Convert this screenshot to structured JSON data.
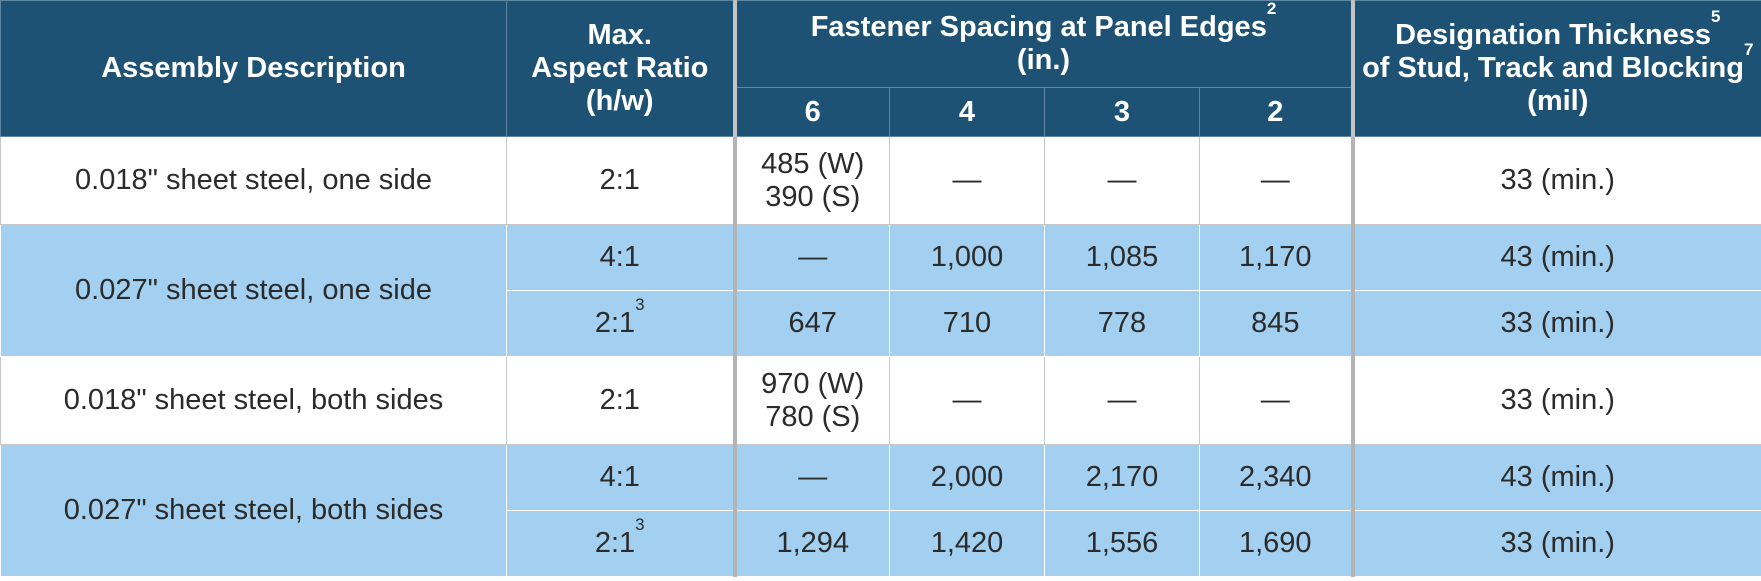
{
  "header": {
    "assembly_description": "Assembly Description",
    "max_aspect_ratio": [
      "Max.",
      "Aspect Ratio",
      "(h/w)"
    ],
    "fastener_spacing": {
      "line1": "Fastener Spacing at Panel Edges",
      "sup": "2",
      "line2": "(in.)"
    },
    "spacing_columns": [
      "6",
      "4",
      "3",
      "2"
    ],
    "designation": {
      "line1": "Designation Thickness",
      "sup1": "5",
      "line2": "of Stud, Track and Blocking",
      "sup2": "7",
      "line3": "(mil)"
    }
  },
  "rows": [
    {
      "description": "0.018\" sheet steel, one side",
      "ratio": "2:1",
      "ratio_sup": "",
      "s6": [
        "485 (W)",
        "390 (S)"
      ],
      "s4": "—",
      "s3": "—",
      "s2": "—",
      "thickness": "33 (min.)"
    },
    {
      "description": "0.027\" sheet steel, one side",
      "ratio": "4:1",
      "ratio_sup": "",
      "s6": [
        "—"
      ],
      "s4": "1,000",
      "s3": "1,085",
      "s2": "1,170",
      "thickness": "43 (min.)"
    },
    {
      "description": "",
      "ratio": "2:1",
      "ratio_sup": "3",
      "s6": [
        "647"
      ],
      "s4": "710",
      "s3": "778",
      "s2": "845",
      "thickness": "33 (min.)"
    },
    {
      "description": "0.018\" sheet steel, both sides",
      "ratio": "2:1",
      "ratio_sup": "",
      "s6": [
        "970 (W)",
        "780 (S)"
      ],
      "s4": "—",
      "s3": "—",
      "s2": "—",
      "thickness": "33 (min.)"
    },
    {
      "description": "0.027\" sheet steel, both sides",
      "ratio": "4:1",
      "ratio_sup": "",
      "s6": [
        "—"
      ],
      "s4": "2,000",
      "s3": "2,170",
      "s2": "2,340",
      "thickness": "43 (min.)"
    },
    {
      "description": "",
      "ratio": "2:1",
      "ratio_sup": "3",
      "s6": [
        "1,294"
      ],
      "s4": "1,420",
      "s3": "1,556",
      "s2": "1,690",
      "thickness": "33 (min.)"
    }
  ],
  "colors": {
    "header_bg": "#1d5275",
    "blue_row_bg": "#a3d0f0",
    "white_row_bg": "#ffffff"
  }
}
